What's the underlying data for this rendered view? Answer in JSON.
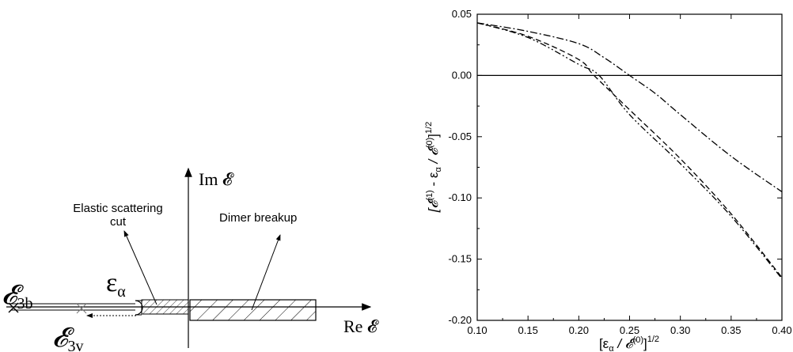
{
  "left_panel": {
    "im_axis_label": "Im 𝓔",
    "re_axis_label": "Re 𝓔",
    "elastic_label_line1": "Elastic scattering",
    "elastic_label_line2": "cut",
    "dimer_label": "Dimer breakup",
    "e3b_label_main": "𝓔",
    "e3b_label_sub": "3b",
    "e3v_label_main": "𝓔",
    "e3v_label_sub": "3v",
    "ealpha_label_main": "ε",
    "ealpha_label_sub": "α"
  },
  "chart_data": {
    "type": "line",
    "xlim": [
      0.1,
      0.4
    ],
    "ylim": [
      -0.2,
      0.05
    ],
    "x_ticks": [
      "0.10",
      "0.15",
      "0.20",
      "0.25",
      "0.30",
      "0.35",
      "0.40"
    ],
    "y_ticks": [
      "0.05",
      "0.00",
      "-0.05",
      "-0.10",
      "-0.15",
      "-0.20"
    ],
    "xlabel": {
      "open": "[ε",
      "sub": "α",
      "mid": " / 𝓔",
      "sup": "(0)",
      "close": "]",
      "power": "1/2"
    },
    "ylabel": {
      "open": "[𝓔",
      "sup1": "(1)",
      "mid1": " - ε",
      "sub": "α",
      "mid2": " / 𝓔",
      "sup2": "(0)",
      "close": "]",
      "power": "1/2"
    },
    "series": [
      {
        "style": "solid",
        "x": [
          0.1,
          0.4
        ],
        "y": [
          0.0,
          0.0
        ]
      },
      {
        "style": "dash-dot",
        "x": [
          0.1,
          0.15,
          0.2,
          0.225,
          0.25,
          0.275,
          0.3,
          0.35,
          0.4
        ],
        "y": [
          0.043,
          0.036,
          0.026,
          0.0145,
          0.0,
          -0.0145,
          -0.032,
          -0.066,
          -0.095
        ]
      },
      {
        "style": "dashed",
        "x": [
          0.1,
          0.15,
          0.2,
          0.215,
          0.25,
          0.3,
          0.35,
          0.4
        ],
        "y": [
          0.043,
          0.032,
          0.013,
          0.0,
          -0.028,
          -0.068,
          -0.113,
          -0.165
        ]
      },
      {
        "style": "dash-dot-dot",
        "x": [
          0.1,
          0.15,
          0.2,
          0.22,
          0.25,
          0.3,
          0.35,
          0.4
        ],
        "y": [
          0.043,
          0.031,
          0.009,
          0.0,
          -0.032,
          -0.072,
          -0.115,
          -0.166
        ]
      }
    ]
  }
}
